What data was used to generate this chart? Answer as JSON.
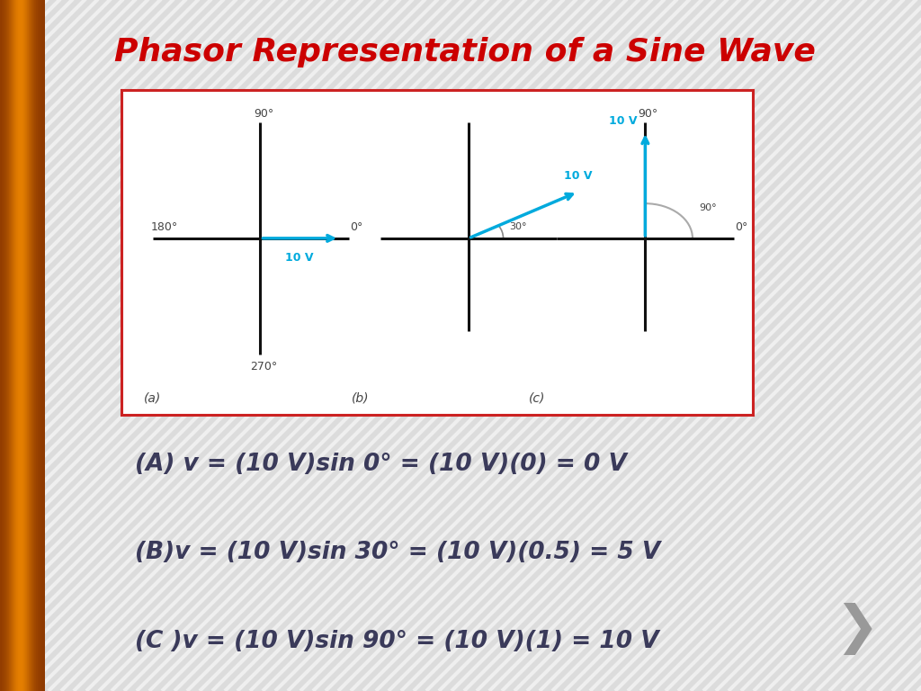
{
  "title": "Phasor Representation of a Sine Wave",
  "title_color": "#cc0000",
  "title_fontsize": 26,
  "bg_color": "#dcdcdc",
  "box_bg": "#ffffff",
  "box_border": "#cc2222",
  "phasor_color": "#00aadd",
  "axis_color": "#111111",
  "label_color": "#444444",
  "arc_color": "#aaaaaa",
  "eq_color": "#3a3a5a",
  "equations": [
    "(A) v = (10 V)sin 0° = (10 V)(0) = 0 V",
    "(B)v = (10 V)sin 30° = (10 V)(0.5) = 5 V",
    "(C )v = (10 V)sin 90° = (10 V)(1) = 10 V"
  ],
  "nav_color": "#999999",
  "label_fs": 9,
  "phasor_label_fs": 9,
  "eq_fs": 19,
  "sub_label_fs": 10
}
